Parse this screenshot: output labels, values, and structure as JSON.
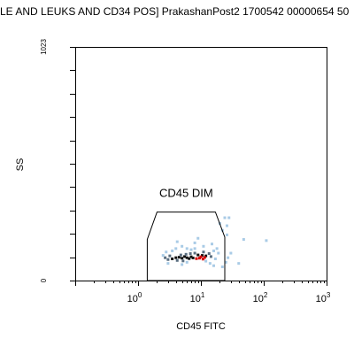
{
  "title": "LE AND LEUKS AND CD34 POS] PrakashanPost2 1700542 00000654 50",
  "chart_data": {
    "type": "scatter",
    "subtype": "flow-cytometry-density-dot-plot",
    "xlabel": "CD45 FITC",
    "ylabel": "SS",
    "x_scale": "log",
    "xlim": [
      0.1,
      1000
    ],
    "x_tick_labels": [
      {
        "value": 1,
        "label": "10⁰"
      },
      {
        "value": 10,
        "label": "10¹"
      },
      {
        "value": 100,
        "label": "10²"
      },
      {
        "value": 1000,
        "label": "10³"
      }
    ],
    "ylim": [
      0,
      1023
    ],
    "y_tick_labels": [
      {
        "value": 0,
        "label": "0"
      },
      {
        "value": 1023,
        "label": "1023"
      }
    ],
    "y_minor_tick_count": 10,
    "gate": {
      "name": "CD45 DIM",
      "vertices": [
        [
          1.4,
          0
        ],
        [
          1.4,
          180
        ],
        [
          2.0,
          300
        ],
        [
          17,
          300
        ],
        [
          24,
          190
        ],
        [
          24,
          0
        ]
      ]
    },
    "density_colors": {
      "low": "#a9cbe6",
      "mid": "#5a6e80",
      "high": "#111111",
      "peak": "#d40000"
    },
    "points": [
      {
        "x": 3.5,
        "y": 95,
        "d": "high"
      },
      {
        "x": 4.0,
        "y": 100,
        "d": "high"
      },
      {
        "x": 4.5,
        "y": 102,
        "d": "high"
      },
      {
        "x": 5.0,
        "y": 98,
        "d": "high"
      },
      {
        "x": 5.5,
        "y": 105,
        "d": "high"
      },
      {
        "x": 6.0,
        "y": 100,
        "d": "high"
      },
      {
        "x": 6.5,
        "y": 96,
        "d": "high"
      },
      {
        "x": 7.0,
        "y": 104,
        "d": "high"
      },
      {
        "x": 7.5,
        "y": 99,
        "d": "high"
      },
      {
        "x": 9.0,
        "y": 112,
        "d": "high"
      },
      {
        "x": 10.5,
        "y": 110,
        "d": "high"
      },
      {
        "x": 12.0,
        "y": 108,
        "d": "high"
      },
      {
        "x": 3.0,
        "y": 92,
        "d": "mid"
      },
      {
        "x": 3.2,
        "y": 108,
        "d": "mid"
      },
      {
        "x": 4.2,
        "y": 88,
        "d": "mid"
      },
      {
        "x": 4.8,
        "y": 112,
        "d": "mid"
      },
      {
        "x": 5.8,
        "y": 115,
        "d": "mid"
      },
      {
        "x": 6.8,
        "y": 118,
        "d": "mid"
      },
      {
        "x": 8.0,
        "y": 120,
        "d": "mid"
      },
      {
        "x": 11.0,
        "y": 125,
        "d": "mid"
      },
      {
        "x": 13.5,
        "y": 118,
        "d": "mid"
      },
      {
        "x": 2.7,
        "y": 100,
        "d": "mid"
      },
      {
        "x": 14.5,
        "y": 105,
        "d": "mid"
      },
      {
        "x": 5.2,
        "y": 86,
        "d": "mid"
      },
      {
        "x": 8.5,
        "y": 96,
        "d": "red"
      },
      {
        "x": 9.5,
        "y": 98,
        "d": "red"
      },
      {
        "x": 10.0,
        "y": 104,
        "d": "red"
      },
      {
        "x": 11.5,
        "y": 101,
        "d": "red"
      },
      {
        "x": 10.8,
        "y": 94,
        "d": "red"
      },
      {
        "x": 2.5,
        "y": 110,
        "d": "low"
      },
      {
        "x": 2.8,
        "y": 125,
        "d": "low"
      },
      {
        "x": 3.5,
        "y": 130,
        "d": "low"
      },
      {
        "x": 4.0,
        "y": 140,
        "d": "low"
      },
      {
        "x": 5.0,
        "y": 150,
        "d": "low"
      },
      {
        "x": 6.0,
        "y": 140,
        "d": "low"
      },
      {
        "x": 7.0,
        "y": 135,
        "d": "low"
      },
      {
        "x": 8.0,
        "y": 140,
        "d": "low"
      },
      {
        "x": 8.0,
        "y": 165,
        "d": "low"
      },
      {
        "x": 11.0,
        "y": 150,
        "d": "low"
      },
      {
        "x": 15.0,
        "y": 160,
        "d": "low"
      },
      {
        "x": 16.0,
        "y": 130,
        "d": "low"
      },
      {
        "x": 18.0,
        "y": 140,
        "d": "low"
      },
      {
        "x": 19.0,
        "y": 120,
        "d": "low"
      },
      {
        "x": 17.0,
        "y": 95,
        "d": "low"
      },
      {
        "x": 14.0,
        "y": 75,
        "d": "low"
      },
      {
        "x": 16.0,
        "y": 65,
        "d": "low"
      },
      {
        "x": 5.0,
        "y": 70,
        "d": "low"
      },
      {
        "x": 3.0,
        "y": 75,
        "d": "low"
      },
      {
        "x": 6.0,
        "y": 80,
        "d": "low"
      },
      {
        "x": 12.0,
        "y": 85,
        "d": "low"
      },
      {
        "x": 22.0,
        "y": 60,
        "d": "low"
      },
      {
        "x": 25.0,
        "y": 80,
        "d": "low"
      },
      {
        "x": 27.0,
        "y": 100,
        "d": "low"
      },
      {
        "x": 30.0,
        "y": 120,
        "d": "low"
      },
      {
        "x": 40.0,
        "y": 75,
        "d": "low"
      },
      {
        "x": 48.0,
        "y": 180,
        "d": "low"
      },
      {
        "x": 110.0,
        "y": 175,
        "d": "low"
      },
      {
        "x": 20.0,
        "y": 250,
        "d": "low"
      },
      {
        "x": 24.0,
        "y": 275,
        "d": "low"
      },
      {
        "x": 28.0,
        "y": 275,
        "d": "low"
      },
      {
        "x": 26.0,
        "y": 240,
        "d": "low"
      },
      {
        "x": 22.0,
        "y": 220,
        "d": "low"
      },
      {
        "x": 26.0,
        "y": 200,
        "d": "low"
      },
      {
        "x": 9.0,
        "y": 185,
        "d": "low"
      },
      {
        "x": 4.2,
        "y": 170,
        "d": "low"
      }
    ]
  }
}
